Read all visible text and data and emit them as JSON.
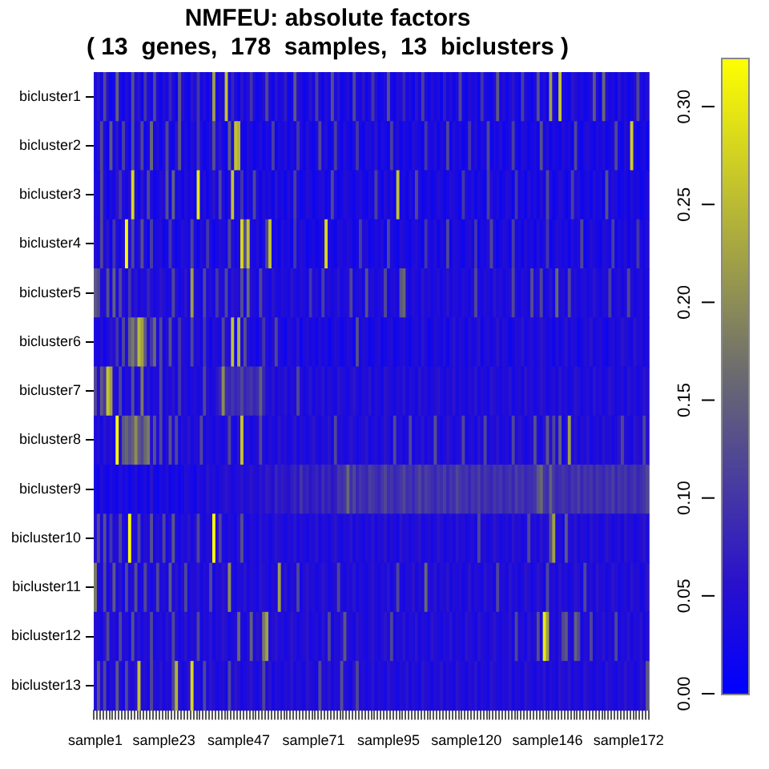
{
  "chart_data": {
    "type": "heatmap",
    "title": "NMFEU: absolute factors",
    "subtitle": "( 13  genes,  178  samples,  13  biclusters )",
    "categories": [
      "sample1",
      null,
      null,
      null,
      null,
      null,
      null,
      null,
      null,
      null,
      null,
      null,
      null,
      null,
      null,
      null,
      null,
      null,
      null,
      null,
      null,
      null,
      "sample23",
      null,
      null,
      null,
      null,
      null,
      null,
      null,
      null,
      null,
      null,
      null,
      null,
      null,
      null,
      null,
      null,
      null,
      null,
      null,
      null,
      null,
      null,
      null,
      "sample47",
      null,
      null,
      null,
      null,
      null,
      null,
      null,
      null,
      null,
      null,
      null,
      null,
      null,
      null,
      null,
      null,
      null,
      null,
      null,
      null,
      null,
      null,
      null,
      "sample71",
      null,
      null,
      null,
      null,
      null,
      null,
      null,
      null,
      null,
      null,
      null,
      null,
      null,
      null,
      null,
      null,
      null,
      null,
      null,
      null,
      null,
      null,
      null,
      "sample95",
      null,
      null,
      null,
      null,
      null,
      null,
      null,
      null,
      null,
      null,
      null,
      null,
      null,
      null,
      null,
      null,
      null,
      null,
      null,
      null,
      null,
      null,
      null,
      null,
      "sample120",
      null,
      null,
      null,
      null,
      null,
      null,
      null,
      null,
      null,
      null,
      null,
      null,
      null,
      null,
      null,
      null,
      null,
      null,
      null,
      null,
      null,
      null,
      null,
      null,
      null,
      "sample146",
      null,
      null,
      null,
      null,
      null,
      null,
      null,
      null,
      null,
      null,
      null,
      null,
      null,
      null,
      null,
      null,
      null,
      null,
      null,
      null,
      null,
      null,
      null,
      null,
      null,
      "sample172",
      null,
      null,
      null,
      null,
      null,
      null
    ],
    "y_categories": [
      "bicluster1",
      "bicluster2",
      "bicluster3",
      "bicluster4",
      "bicluster5",
      "bicluster6",
      "bicluster7",
      "bicluster8",
      "bicluster9",
      "bicluster10",
      "bicluster11",
      "bicluster12",
      "bicluster13"
    ],
    "cells": [
      [
        0.04,
        0.06,
        0.03,
        0.12,
        0.05,
        0.02,
        0.03,
        0.15,
        0.04,
        0.02,
        0.05,
        0.03,
        0.13,
        0.04,
        0.06,
        0.02,
        0.1,
        0.04,
        0.03,
        0.12,
        0.04,
        0.02,
        0.05,
        0.03,
        0.08,
        0.04,
        0.02,
        0.14,
        0.05,
        0.03,
        0.02,
        0.06,
        0.04,
        0.1,
        0.03,
        0.05,
        0.02,
        0.04,
        0.22,
        0.03,
        0.05,
        0.04,
        0.26,
        0.03,
        0.08,
        0.04,
        0.02,
        0.06,
        0.03,
        0.05,
        0.1,
        0.04,
        0.02,
        0.03,
        0.05,
        0.12,
        0.04,
        0.02,
        0.06,
        0.03,
        0.04,
        0.07,
        0.02,
        0.03,
        0.14,
        0.05,
        0.04,
        0.02,
        0.03,
        0.06,
        0.03,
        0.11,
        0.04,
        0.02,
        0.05,
        0.03,
        0.13,
        0.04,
        0.06,
        0.02,
        0.03,
        0.05,
        0.02,
        0.12,
        0.04,
        0.03,
        0.06,
        0.02,
        0.04,
        0.1,
        0.05,
        0.02,
        0.03,
        0.04,
        0.13,
        0.03,
        0.02,
        0.05,
        0.04,
        0.08,
        0.03,
        0.04,
        0.02,
        0.06,
        0.03,
        0.11,
        0.04,
        0.02,
        0.05,
        0.03,
        0.04,
        0.02,
        0.07,
        0.03,
        0.05,
        0.02,
        0.04,
        0.12,
        0.03,
        0.02,
        0.05,
        0.03,
        0.04,
        0.02,
        0.1,
        0.04,
        0.03,
        0.02,
        0.05,
        0.14,
        0.03,
        0.05,
        0.02,
        0.04,
        0.06,
        0.03,
        0.02,
        0.11,
        0.04,
        0.03,
        0.02,
        0.04,
        0.13,
        0.03,
        0.05,
        0.02,
        0.22,
        0.04,
        0.03,
        0.26,
        0.04,
        0.03,
        0.02,
        0.06,
        0.05,
        0.03,
        0.04,
        0.02,
        0.03,
        0.05,
        0.14,
        0.04,
        0.02,
        0.16,
        0.05,
        0.03,
        0.04,
        0.02,
        0.06,
        0.03,
        0.04,
        0.02,
        0.03,
        0.05,
        0.12,
        0.04,
        0.03,
        0.05
      ],
      [
        0.03,
        0.05,
        0.12,
        0.04,
        0.02,
        0.14,
        0.03,
        0.06,
        0.02,
        0.11,
        0.04,
        0.02,
        0.13,
        0.03,
        0.05,
        0.12,
        0.02,
        0.04,
        0.16,
        0.03,
        0.05,
        0.02,
        0.04,
        0.12,
        0.03,
        0.02,
        0.06,
        0.14,
        0.03,
        0.04,
        0.02,
        0.05,
        0.03,
        0.1,
        0.04,
        0.02,
        0.03,
        0.05,
        0.13,
        0.04,
        0.06,
        0.03,
        0.02,
        0.15,
        0.04,
        0.26,
        0.24,
        0.03,
        0.02,
        0.05,
        0.04,
        0.02,
        0.03,
        0.05,
        0.02,
        0.04,
        0.03,
        0.11,
        0.02,
        0.04,
        0.03,
        0.05,
        0.02,
        0.04,
        0.03,
        0.1,
        0.04,
        0.02,
        0.05,
        0.03,
        0.02,
        0.04,
        0.12,
        0.03,
        0.05,
        0.02,
        0.03,
        0.11,
        0.04,
        0.02,
        0.05,
        0.03,
        0.02,
        0.04,
        0.1,
        0.03,
        0.02,
        0.05,
        0.04,
        0.03,
        0.06,
        0.02,
        0.04,
        0.03,
        0.02,
        0.11,
        0.03,
        0.05,
        0.02,
        0.04,
        0.03,
        0.02,
        0.05,
        0.04,
        0.03,
        0.02,
        0.1,
        0.04,
        0.03,
        0.05,
        0.02,
        0.04,
        0.03,
        0.12,
        0.02,
        0.05,
        0.03,
        0.04,
        0.02,
        0.03,
        0.1,
        0.03,
        0.05,
        0.02,
        0.04,
        0.03,
        0.12,
        0.02,
        0.04,
        0.03,
        0.05,
        0.02,
        0.03,
        0.04,
        0.11,
        0.03,
        0.02,
        0.05,
        0.04,
        0.02,
        0.03,
        0.04,
        0.02,
        0.13,
        0.03,
        0.05,
        0.02,
        0.04,
        0.03,
        0.02,
        0.05,
        0.03,
        0.04,
        0.02,
        0.12,
        0.03,
        0.02,
        0.04,
        0.05,
        0.03,
        0.02,
        0.04,
        0.03,
        0.05,
        0.02,
        0.03,
        0.04,
        0.12,
        0.03,
        0.02,
        0.05,
        0.03,
        0.27,
        0.04,
        0.02,
        0.03,
        0.04,
        0.02
      ],
      [
        0.04,
        0.03,
        0.12,
        0.05,
        0.02,
        0.04,
        0.03,
        0.06,
        0.1,
        0.04,
        0.03,
        0.05,
        0.28,
        0.04,
        0.02,
        0.06,
        0.03,
        0.12,
        0.04,
        0.02,
        0.03,
        0.05,
        0.04,
        0.13,
        0.02,
        0.15,
        0.03,
        0.04,
        0.02,
        0.05,
        0.03,
        0.04,
        0.02,
        0.3,
        0.03,
        0.05,
        0.02,
        0.04,
        0.06,
        0.03,
        0.12,
        0.04,
        0.02,
        0.05,
        0.26,
        0.03,
        0.04,
        0.1,
        0.02,
        0.05,
        0.03,
        0.12,
        0.04,
        0.02,
        0.05,
        0.03,
        0.04,
        0.02,
        0.06,
        0.03,
        0.04,
        0.02,
        0.05,
        0.03,
        0.11,
        0.04,
        0.02,
        0.03,
        0.05,
        0.04,
        0.02,
        0.03,
        0.04,
        0.05,
        0.02,
        0.03,
        0.12,
        0.04,
        0.02,
        0.03,
        0.05,
        0.04,
        0.03,
        0.02,
        0.04,
        0.05,
        0.03,
        0.02,
        0.04,
        0.03,
        0.11,
        0.04,
        0.02,
        0.05,
        0.03,
        0.04,
        0.02,
        0.26,
        0.03,
        0.04,
        0.02,
        0.05,
        0.03,
        0.12,
        0.04,
        0.02,
        0.03,
        0.04,
        0.02,
        0.03,
        0.05,
        0.04,
        0.02,
        0.03,
        0.05,
        0.04,
        0.03,
        0.02,
        0.1,
        0.04,
        0.03,
        0.05,
        0.02,
        0.04,
        0.03,
        0.02,
        0.11,
        0.05,
        0.03,
        0.04,
        0.02,
        0.03,
        0.05,
        0.04,
        0.02,
        0.1,
        0.03,
        0.04,
        0.02,
        0.05,
        0.03,
        0.04,
        0.02,
        0.05,
        0.03,
        0.12,
        0.04,
        0.02,
        0.03,
        0.05,
        0.04,
        0.02,
        0.03,
        0.11,
        0.04,
        0.05,
        0.02,
        0.03,
        0.04,
        0.02,
        0.05,
        0.03,
        0.04,
        0.02,
        0.13,
        0.03,
        0.05,
        0.04,
        0.02,
        0.03,
        0.04,
        0.02,
        0.05,
        0.03,
        0.04,
        0.02,
        0.03,
        0.04
      ],
      [
        0.05,
        0.03,
        0.12,
        0.04,
        0.06,
        0.02,
        0.1,
        0.04,
        0.03,
        0.05,
        0.32,
        0.04,
        0.12,
        0.03,
        0.05,
        0.13,
        0.04,
        0.02,
        0.11,
        0.03,
        0.04,
        0.05,
        0.02,
        0.03,
        0.1,
        0.04,
        0.02,
        0.03,
        0.05,
        0.04,
        0.03,
        0.12,
        0.04,
        0.02,
        0.05,
        0.03,
        0.1,
        0.04,
        0.02,
        0.03,
        0.05,
        0.04,
        0.03,
        0.12,
        0.05,
        0.03,
        0.04,
        0.28,
        0.13,
        0.26,
        0.04,
        0.03,
        0.05,
        0.02,
        0.04,
        0.12,
        0.26,
        0.03,
        0.04,
        0.02,
        0.05,
        0.03,
        0.04,
        0.02,
        0.1,
        0.03,
        0.05,
        0.04,
        0.02,
        0.03,
        0.04,
        0.02,
        0.03,
        0.05,
        0.28,
        0.04,
        0.03,
        0.02,
        0.05,
        0.04,
        0.03,
        0.05,
        0.04,
        0.02,
        0.03,
        0.11,
        0.04,
        0.05,
        0.02,
        0.03,
        0.04,
        0.03,
        0.05,
        0.02,
        0.12,
        0.04,
        0.03,
        0.02,
        0.05,
        0.04,
        0.03,
        0.02,
        0.04,
        0.05,
        0.03,
        0.02,
        0.1,
        0.04,
        0.03,
        0.05,
        0.02,
        0.04,
        0.03,
        0.12,
        0.02,
        0.05,
        0.04,
        0.03,
        0.02,
        0.04,
        0.05,
        0.03,
        0.1,
        0.02,
        0.04,
        0.03,
        0.05,
        0.12,
        0.04,
        0.02,
        0.03,
        0.05,
        0.04,
        0.02,
        0.11,
        0.03,
        0.04,
        0.02,
        0.05,
        0.03,
        0.04,
        0.02,
        0.05,
        0.03,
        0.04,
        0.1,
        0.02,
        0.03,
        0.05,
        0.04,
        0.03,
        0.04,
        0.02,
        0.05,
        0.03,
        0.04,
        0.12,
        0.02,
        0.03,
        0.05,
        0.04,
        0.03,
        0.02,
        0.05,
        0.04,
        0.03,
        0.11,
        0.02,
        0.04,
        0.03,
        0.05,
        0.02,
        0.04,
        0.03,
        0.1,
        0.04,
        0.03,
        0.05
      ],
      [
        0.14,
        0.12,
        0.05,
        0.04,
        0.13,
        0.03,
        0.15,
        0.04,
        0.12,
        0.05,
        0.03,
        0.1,
        0.04,
        0.06,
        0.03,
        0.05,
        0.04,
        0.08,
        0.05,
        0.03,
        0.04,
        0.06,
        0.05,
        0.03,
        0.04,
        0.12,
        0.05,
        0.03,
        0.04,
        0.06,
        0.03,
        0.22,
        0.05,
        0.04,
        0.03,
        0.12,
        0.04,
        0.05,
        0.03,
        0.1,
        0.05,
        0.04,
        0.12,
        0.03,
        0.06,
        0.05,
        0.04,
        0.13,
        0.03,
        0.16,
        0.05,
        0.04,
        0.03,
        0.12,
        0.05,
        0.04,
        0.03,
        0.06,
        0.04,
        0.03,
        0.05,
        0.04,
        0.03,
        0.06,
        0.04,
        0.03,
        0.05,
        0.04,
        0.03,
        0.1,
        0.04,
        0.05,
        0.03,
        0.11,
        0.04,
        0.05,
        0.03,
        0.04,
        0.06,
        0.03,
        0.04,
        0.05,
        0.12,
        0.03,
        0.04,
        0.05,
        0.03,
        0.13,
        0.04,
        0.05,
        0.03,
        0.04,
        0.05,
        0.12,
        0.03,
        0.04,
        0.05,
        0.03,
        0.14,
        0.16,
        0.04,
        0.03,
        0.05,
        0.04,
        0.03,
        0.06,
        0.04,
        0.05,
        0.03,
        0.04,
        0.05,
        0.03,
        0.04,
        0.06,
        0.03,
        0.05,
        0.04,
        0.03,
        0.05,
        0.04,
        0.03,
        0.05,
        0.12,
        0.04,
        0.03,
        0.05,
        0.04,
        0.03,
        0.06,
        0.04,
        0.05,
        0.03,
        0.04,
        0.05,
        0.12,
        0.04,
        0.03,
        0.05,
        0.04,
        0.03,
        0.13,
        0.04,
        0.05,
        0.12,
        0.03,
        0.04,
        0.06,
        0.03,
        0.16,
        0.04,
        0.05,
        0.03,
        0.12,
        0.04,
        0.05,
        0.03,
        0.04,
        0.05,
        0.03,
        0.04,
        0.06,
        0.04,
        0.03,
        0.05,
        0.04,
        0.11,
        0.03,
        0.04,
        0.05,
        0.03,
        0.04,
        0.12,
        0.05,
        0.03,
        0.04,
        0.05,
        0.03,
        0.04
      ],
      [
        0.04,
        0.03,
        0.05,
        0.02,
        0.04,
        0.06,
        0.05,
        0.1,
        0.03,
        0.12,
        0.04,
        0.15,
        0.18,
        0.13,
        0.25,
        0.22,
        0.14,
        0.05,
        0.1,
        0.16,
        0.04,
        0.12,
        0.03,
        0.05,
        0.13,
        0.04,
        0.03,
        0.1,
        0.05,
        0.04,
        0.03,
        0.12,
        0.04,
        0.05,
        0.03,
        0.1,
        0.04,
        0.02,
        0.05,
        0.04,
        0.03,
        0.12,
        0.05,
        0.04,
        0.26,
        0.03,
        0.24,
        0.04,
        0.13,
        0.05,
        0.03,
        0.04,
        0.02,
        0.05,
        0.1,
        0.04,
        0.03,
        0.05,
        0.12,
        0.04,
        0.03,
        0.02,
        0.05,
        0.04,
        0.03,
        0.06,
        0.02,
        0.04,
        0.05,
        0.03,
        0.04,
        0.02,
        0.05,
        0.03,
        0.04,
        0.02,
        0.03,
        0.05,
        0.04,
        0.02,
        0.03,
        0.05,
        0.04,
        0.02,
        0.13,
        0.03,
        0.05,
        0.04,
        0.02,
        0.03,
        0.04,
        0.05,
        0.02,
        0.03,
        0.04,
        0.05,
        0.02,
        0.03,
        0.04,
        0.05,
        0.03,
        0.02,
        0.04,
        0.05,
        0.03,
        0.06,
        0.04,
        0.02,
        0.03,
        0.05,
        0.04,
        0.03,
        0.05,
        0.02,
        0.04,
        0.06,
        0.03,
        0.05,
        0.04,
        0.02,
        0.05,
        0.03,
        0.04,
        0.06,
        0.02,
        0.04,
        0.05,
        0.03,
        0.04,
        0.06,
        0.03,
        0.05,
        0.04,
        0.02,
        0.03,
        0.05,
        0.04,
        0.06,
        0.03,
        0.04,
        0.05,
        0.03,
        0.04,
        0.06,
        0.05,
        0.03,
        0.04,
        0.02,
        0.05,
        0.03,
        0.04,
        0.06,
        0.03,
        0.05,
        0.04,
        0.02,
        0.03,
        0.05,
        0.04,
        0.06,
        0.03,
        0.04,
        0.05,
        0.03,
        0.02,
        0.04,
        0.05,
        0.03,
        0.04,
        0.06,
        0.05,
        0.04,
        0.03,
        0.06,
        0.04,
        0.05,
        0.03,
        0.04
      ],
      [
        0.12,
        0.05,
        0.14,
        0.1,
        0.26,
        0.22,
        0.05,
        0.04,
        0.12,
        0.03,
        0.05,
        0.04,
        0.13,
        0.03,
        0.05,
        0.18,
        0.04,
        0.06,
        0.03,
        0.05,
        0.04,
        0.12,
        0.03,
        0.05,
        0.04,
        0.06,
        0.03,
        0.1,
        0.04,
        0.05,
        0.03,
        0.04,
        0.05,
        0.03,
        0.04,
        0.12,
        0.05,
        0.03,
        0.04,
        0.06,
        0.08,
        0.2,
        0.09,
        0.08,
        0.1,
        0.08,
        0.09,
        0.12,
        0.08,
        0.09,
        0.1,
        0.08,
        0.09,
        0.15,
        0.08,
        0.05,
        0.04,
        0.06,
        0.03,
        0.05,
        0.04,
        0.06,
        0.03,
        0.05,
        0.04,
        0.12,
        0.05,
        0.03,
        0.04,
        0.06,
        0.03,
        0.05,
        0.04,
        0.06,
        0.03,
        0.05,
        0.04,
        0.03,
        0.06,
        0.05,
        0.04,
        0.03,
        0.05,
        0.06,
        0.04,
        0.03,
        0.05,
        0.04,
        0.06,
        0.03,
        0.05,
        0.04,
        0.03,
        0.06,
        0.05,
        0.04,
        0.03,
        0.05,
        0.04,
        0.06,
        0.03,
        0.05,
        0.04,
        0.03,
        0.06,
        0.04,
        0.05,
        0.03,
        0.04,
        0.05,
        0.06,
        0.04,
        0.03,
        0.05,
        0.04,
        0.06,
        0.03,
        0.05,
        0.04,
        0.03,
        0.05,
        0.04,
        0.06,
        0.03,
        0.05,
        0.04,
        0.03,
        0.06,
        0.05,
        0.04,
        0.03,
        0.05,
        0.04,
        0.06,
        0.03,
        0.04,
        0.05,
        0.03,
        0.06,
        0.04,
        0.05,
        0.03,
        0.04,
        0.06,
        0.05,
        0.03,
        0.04,
        0.05,
        0.03,
        0.06,
        0.04,
        0.05,
        0.03,
        0.04,
        0.06,
        0.05,
        0.03,
        0.04,
        0.05,
        0.03,
        0.06,
        0.04,
        0.05,
        0.03,
        0.04,
        0.06,
        0.05,
        0.03,
        0.04,
        0.05,
        0.03,
        0.06,
        0.04,
        0.05,
        0.03,
        0.04,
        0.06,
        0.05
      ],
      [
        0.04,
        0.05,
        0.03,
        0.06,
        0.04,
        0.05,
        0.03,
        0.32,
        0.05,
        0.14,
        0.16,
        0.13,
        0.15,
        0.2,
        0.14,
        0.12,
        0.16,
        0.18,
        0.05,
        0.13,
        0.04,
        0.12,
        0.03,
        0.05,
        0.13,
        0.04,
        0.12,
        0.03,
        0.05,
        0.04,
        0.06,
        0.03,
        0.05,
        0.04,
        0.12,
        0.03,
        0.05,
        0.04,
        0.03,
        0.05,
        0.04,
        0.03,
        0.05,
        0.12,
        0.04,
        0.03,
        0.06,
        0.26,
        0.04,
        0.05,
        0.03,
        0.04,
        0.05,
        0.12,
        0.04,
        0.03,
        0.05,
        0.04,
        0.03,
        0.06,
        0.04,
        0.05,
        0.03,
        0.04,
        0.06,
        0.03,
        0.05,
        0.04,
        0.03,
        0.05,
        0.06,
        0.04,
        0.03,
        0.05,
        0.04,
        0.06,
        0.03,
        0.12,
        0.04,
        0.05,
        0.03,
        0.04,
        0.06,
        0.05,
        0.03,
        0.04,
        0.05,
        0.06,
        0.03,
        0.04,
        0.05,
        0.03,
        0.04,
        0.06,
        0.05,
        0.03,
        0.12,
        0.04,
        0.05,
        0.03,
        0.04,
        0.12,
        0.03,
        0.05,
        0.04,
        0.06,
        0.03,
        0.05,
        0.04,
        0.13,
        0.05,
        0.03,
        0.04,
        0.06,
        0.05,
        0.03,
        0.04,
        0.05,
        0.12,
        0.03,
        0.04,
        0.05,
        0.03,
        0.06,
        0.04,
        0.12,
        0.03,
        0.05,
        0.04,
        0.06,
        0.03,
        0.04,
        0.05,
        0.03,
        0.12,
        0.04,
        0.06,
        0.05,
        0.03,
        0.04,
        0.05,
        0.13,
        0.04,
        0.03,
        0.06,
        0.14,
        0.05,
        0.12,
        0.04,
        0.15,
        0.03,
        0.05,
        0.22,
        0.04,
        0.06,
        0.03,
        0.05,
        0.04,
        0.06,
        0.03,
        0.04,
        0.05,
        0.03,
        0.06,
        0.04,
        0.05,
        0.03,
        0.04,
        0.06,
        0.12,
        0.05,
        0.04,
        0.03,
        0.06,
        0.05,
        0.04,
        0.12,
        0.05
      ],
      [
        0.03,
        0.02,
        0.05,
        0.03,
        0.02,
        0.04,
        0.03,
        0.02,
        0.05,
        0.03,
        0.04,
        0.02,
        0.03,
        0.05,
        0.02,
        0.03,
        0.04,
        0.02,
        0.06,
        0.03,
        0.02,
        0.04,
        0.03,
        0.05,
        0.02,
        0.03,
        0.04,
        0.02,
        0.03,
        0.05,
        0.04,
        0.03,
        0.02,
        0.05,
        0.04,
        0.03,
        0.06,
        0.04,
        0.05,
        0.03,
        0.04,
        0.05,
        0.06,
        0.05,
        0.03,
        0.04,
        0.05,
        0.06,
        0.04,
        0.05,
        0.06,
        0.05,
        0.04,
        0.06,
        0.05,
        0.07,
        0.06,
        0.05,
        0.08,
        0.06,
        0.07,
        0.06,
        0.05,
        0.07,
        0.08,
        0.06,
        0.1,
        0.07,
        0.08,
        0.06,
        0.07,
        0.08,
        0.06,
        0.09,
        0.07,
        0.08,
        0.06,
        0.07,
        0.1,
        0.09,
        0.1,
        0.16,
        0.09,
        0.12,
        0.08,
        0.1,
        0.09,
        0.08,
        0.11,
        0.1,
        0.09,
        0.08,
        0.1,
        0.12,
        0.09,
        0.1,
        0.08,
        0.09,
        0.1,
        0.12,
        0.09,
        0.1,
        0.08,
        0.1,
        0.12,
        0.09,
        0.11,
        0.1,
        0.09,
        0.08,
        0.1,
        0.09,
        0.11,
        0.08,
        0.1,
        0.09,
        0.12,
        0.1,
        0.09,
        0.1,
        0.08,
        0.1,
        0.09,
        0.11,
        0.08,
        0.1,
        0.09,
        0.08,
        0.1,
        0.09,
        0.1,
        0.08,
        0.09,
        0.1,
        0.08,
        0.11,
        0.09,
        0.1,
        0.08,
        0.09,
        0.09,
        0.1,
        0.14,
        0.16,
        0.1,
        0.09,
        0.15,
        0.1,
        0.08,
        0.09,
        0.1,
        0.09,
        0.08,
        0.1,
        0.09,
        0.11,
        0.08,
        0.1,
        0.09,
        0.1,
        0.08,
        0.1,
        0.09,
        0.08,
        0.1,
        0.09,
        0.11,
        0.08,
        0.1,
        0.09,
        0.1,
        0.08,
        0.09,
        0.1,
        0.08,
        0.09,
        0.1,
        0.12
      ],
      [
        0.05,
        0.12,
        0.04,
        0.13,
        0.03,
        0.1,
        0.04,
        0.05,
        0.12,
        0.04,
        0.03,
        0.32,
        0.05,
        0.04,
        0.12,
        0.03,
        0.05,
        0.04,
        0.13,
        0.03,
        0.05,
        0.04,
        0.12,
        0.03,
        0.05,
        0.14,
        0.04,
        0.03,
        0.05,
        0.04,
        0.06,
        0.03,
        0.05,
        0.12,
        0.04,
        0.03,
        0.05,
        0.04,
        0.32,
        0.05,
        0.12,
        0.04,
        0.03,
        0.05,
        0.04,
        0.03,
        0.06,
        0.13,
        0.04,
        0.03,
        0.05,
        0.04,
        0.03,
        0.06,
        0.04,
        0.05,
        0.03,
        0.04,
        0.06,
        0.05,
        0.04,
        0.03,
        0.05,
        0.04,
        0.06,
        0.03,
        0.05,
        0.04,
        0.03,
        0.05,
        0.04,
        0.06,
        0.03,
        0.05,
        0.04,
        0.03,
        0.05,
        0.06,
        0.04,
        0.03,
        0.05,
        0.04,
        0.06,
        0.03,
        0.05,
        0.04,
        0.03,
        0.05,
        0.04,
        0.06,
        0.03,
        0.05,
        0.04,
        0.06,
        0.03,
        0.05,
        0.04,
        0.03,
        0.06,
        0.04,
        0.05,
        0.03,
        0.04,
        0.05,
        0.06,
        0.03,
        0.04,
        0.05,
        0.03,
        0.04,
        0.06,
        0.05,
        0.03,
        0.04,
        0.05,
        0.03,
        0.06,
        0.04,
        0.05,
        0.03,
        0.04,
        0.05,
        0.03,
        0.12,
        0.04,
        0.05,
        0.03,
        0.04,
        0.06,
        0.05,
        0.03,
        0.04,
        0.05,
        0.03,
        0.06,
        0.04,
        0.05,
        0.03,
        0.04,
        0.12,
        0.04,
        0.05,
        0.03,
        0.06,
        0.04,
        0.05,
        0.13,
        0.22,
        0.04,
        0.05,
        0.03,
        0.14,
        0.05,
        0.04,
        0.06,
        0.03,
        0.05,
        0.04,
        0.03,
        0.06,
        0.04,
        0.05,
        0.03,
        0.04,
        0.06,
        0.05,
        0.03,
        0.04,
        0.05,
        0.03,
        0.06,
        0.04,
        0.05,
        0.03,
        0.04,
        0.05,
        0.06,
        0.04
      ],
      [
        0.18,
        0.05,
        0.04,
        0.12,
        0.03,
        0.05,
        0.14,
        0.04,
        0.06,
        0.03,
        0.12,
        0.04,
        0.05,
        0.13,
        0.03,
        0.04,
        0.12,
        0.05,
        0.03,
        0.04,
        0.12,
        0.04,
        0.05,
        0.03,
        0.14,
        0.04,
        0.06,
        0.03,
        0.05,
        0.12,
        0.03,
        0.05,
        0.04,
        0.06,
        0.03,
        0.05,
        0.04,
        0.12,
        0.03,
        0.05,
        0.04,
        0.06,
        0.05,
        0.2,
        0.04,
        0.03,
        0.05,
        0.04,
        0.06,
        0.03,
        0.05,
        0.04,
        0.03,
        0.06,
        0.05,
        0.04,
        0.03,
        0.05,
        0.04,
        0.22,
        0.04,
        0.06,
        0.03,
        0.05,
        0.04,
        0.12,
        0.03,
        0.05,
        0.06,
        0.04,
        0.05,
        0.03,
        0.04,
        0.06,
        0.05,
        0.03,
        0.04,
        0.05,
        0.12,
        0.04,
        0.03,
        0.05,
        0.04,
        0.06,
        0.03,
        0.05,
        0.04,
        0.03,
        0.05,
        0.06,
        0.04,
        0.03,
        0.05,
        0.04,
        0.06,
        0.03,
        0.05,
        0.12,
        0.04,
        0.03,
        0.05,
        0.04,
        0.06,
        0.03,
        0.05,
        0.04,
        0.16,
        0.05,
        0.04,
        0.06,
        0.03,
        0.05,
        0.04,
        0.06,
        0.03,
        0.05,
        0.04,
        0.05,
        0.03,
        0.04,
        0.06,
        0.03,
        0.05,
        0.04,
        0.03,
        0.06,
        0.04,
        0.05,
        0.03,
        0.12,
        0.04,
        0.05,
        0.03,
        0.06,
        0.04,
        0.05,
        0.03,
        0.04,
        0.06,
        0.05,
        0.03,
        0.04,
        0.06,
        0.05,
        0.03,
        0.12,
        0.04,
        0.05,
        0.03,
        0.06,
        0.04,
        0.05,
        0.03,
        0.04,
        0.06,
        0.05,
        0.03,
        0.12,
        0.04,
        0.05,
        0.03,
        0.06,
        0.04,
        0.05,
        0.03,
        0.04,
        0.06,
        0.05,
        0.03,
        0.04,
        0.05,
        0.03,
        0.06,
        0.04,
        0.05,
        0.03,
        0.04,
        0.06
      ],
      [
        0.05,
        0.04,
        0.03,
        0.06,
        0.12,
        0.04,
        0.05,
        0.03,
        0.12,
        0.04,
        0.05,
        0.03,
        0.13,
        0.04,
        0.06,
        0.03,
        0.05,
        0.04,
        0.12,
        0.03,
        0.04,
        0.05,
        0.03,
        0.06,
        0.04,
        0.12,
        0.05,
        0.03,
        0.04,
        0.06,
        0.03,
        0.05,
        0.04,
        0.12,
        0.03,
        0.05,
        0.04,
        0.06,
        0.03,
        0.05,
        0.04,
        0.06,
        0.05,
        0.03,
        0.04,
        0.05,
        0.16,
        0.04,
        0.03,
        0.05,
        0.15,
        0.04,
        0.06,
        0.05,
        0.18,
        0.22,
        0.04,
        0.05,
        0.06,
        0.04,
        0.05,
        0.03,
        0.04,
        0.06,
        0.05,
        0.03,
        0.04,
        0.05,
        0.06,
        0.03,
        0.04,
        0.05,
        0.03,
        0.06,
        0.04,
        0.12,
        0.03,
        0.05,
        0.04,
        0.06,
        0.14,
        0.05,
        0.04,
        0.03,
        0.06,
        0.05,
        0.04,
        0.03,
        0.05,
        0.06,
        0.04,
        0.03,
        0.05,
        0.06,
        0.04,
        0.12,
        0.03,
        0.05,
        0.04,
        0.06,
        0.03,
        0.05,
        0.04,
        0.06,
        0.03,
        0.05,
        0.04,
        0.03,
        0.06,
        0.05,
        0.04,
        0.03,
        0.05,
        0.04,
        0.06,
        0.03,
        0.05,
        0.04,
        0.03,
        0.06,
        0.05,
        0.04,
        0.03,
        0.06,
        0.05,
        0.04,
        0.03,
        0.05,
        0.06,
        0.04,
        0.03,
        0.05,
        0.04,
        0.06,
        0.03,
        0.12,
        0.04,
        0.05,
        0.03,
        0.06,
        0.04,
        0.05,
        0.13,
        0.03,
        0.3,
        0.22,
        0.04,
        0.05,
        0.03,
        0.06,
        0.12,
        0.14,
        0.05,
        0.04,
        0.15,
        0.12,
        0.03,
        0.05,
        0.04,
        0.12,
        0.03,
        0.05,
        0.04,
        0.06,
        0.03,
        0.05,
        0.04,
        0.12,
        0.03,
        0.05,
        0.04,
        0.06,
        0.03,
        0.05,
        0.04,
        0.06,
        0.03,
        0.05
      ],
      [
        0.04,
        0.13,
        0.05,
        0.12,
        0.03,
        0.05,
        0.04,
        0.14,
        0.05,
        0.03,
        0.12,
        0.05,
        0.04,
        0.06,
        0.26,
        0.04,
        0.05,
        0.03,
        0.12,
        0.05,
        0.04,
        0.06,
        0.03,
        0.05,
        0.04,
        0.12,
        0.24,
        0.05,
        0.03,
        0.04,
        0.06,
        0.28,
        0.04,
        0.05,
        0.03,
        0.12,
        0.04,
        0.06,
        0.05,
        0.03,
        0.04,
        0.05,
        0.03,
        0.12,
        0.04,
        0.06,
        0.05,
        0.03,
        0.04,
        0.05,
        0.06,
        0.04,
        0.03,
        0.05,
        0.12,
        0.04,
        0.06,
        0.03,
        0.05,
        0.04,
        0.03,
        0.05,
        0.04,
        0.06,
        0.03,
        0.05,
        0.04,
        0.03,
        0.06,
        0.05,
        0.04,
        0.03,
        0.12,
        0.05,
        0.04,
        0.06,
        0.03,
        0.05,
        0.04,
        0.13,
        0.05,
        0.04,
        0.03,
        0.06,
        0.12,
        0.04,
        0.05,
        0.03,
        0.04,
        0.06,
        0.03,
        0.05,
        0.04,
        0.03,
        0.06,
        0.05,
        0.04,
        0.03,
        0.05,
        0.04,
        0.06,
        0.03,
        0.05,
        0.04,
        0.03,
        0.06,
        0.05,
        0.04,
        0.03,
        0.05,
        0.04,
        0.06,
        0.03,
        0.05,
        0.04,
        0.03,
        0.06,
        0.05,
        0.04,
        0.03,
        0.05,
        0.04,
        0.06,
        0.03,
        0.05,
        0.04,
        0.03,
        0.06,
        0.05,
        0.04,
        0.03,
        0.05,
        0.04,
        0.06,
        0.03,
        0.05,
        0.04,
        0.03,
        0.06,
        0.05,
        0.04,
        0.03,
        0.05,
        0.04,
        0.06,
        0.03,
        0.05,
        0.04,
        0.03,
        0.06,
        0.05,
        0.04,
        0.06,
        0.03,
        0.05,
        0.04,
        0.03,
        0.06,
        0.05,
        0.04,
        0.03,
        0.05,
        0.04,
        0.03,
        0.06,
        0.05,
        0.04,
        0.03,
        0.05,
        0.04,
        0.06,
        0.04,
        0.05,
        0.03,
        0.04,
        0.06,
        0.05,
        0.14
      ]
    ],
    "clim": [
      0,
      0.325
    ],
    "cticks": [
      {
        "value": 0,
        "label": "0.00"
      },
      {
        "value": 0.05,
        "label": "0.05"
      },
      {
        "value": 0.1,
        "label": "0.10"
      },
      {
        "value": 0.15,
        "label": "0.15"
      },
      {
        "value": 0.2,
        "label": "0.20"
      },
      {
        "value": 0.25,
        "label": "0.25"
      },
      {
        "value": 0.3,
        "label": "0.30"
      }
    ]
  }
}
